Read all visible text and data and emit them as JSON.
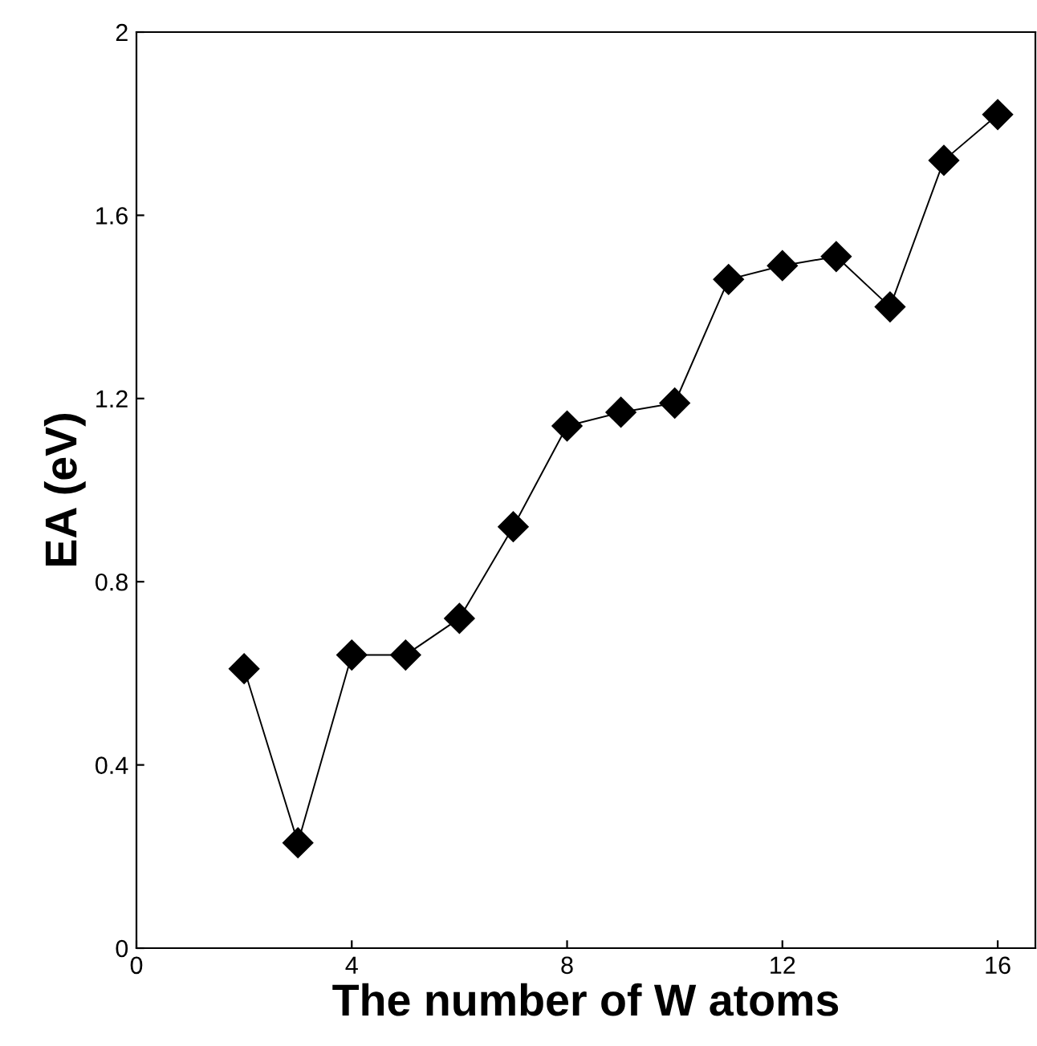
{
  "chart_data": {
    "type": "line",
    "xlabel": "The number of W atoms",
    "ylabel": "EA (eV)",
    "x": [
      2,
      3,
      4,
      5,
      6,
      7,
      8,
      9,
      10,
      11,
      12,
      13,
      14,
      15,
      16
    ],
    "series": [
      {
        "color": "#000000",
        "values": [
          0.61,
          0.23,
          0.64,
          0.64,
          0.72,
          0.92,
          1.14,
          1.17,
          1.19,
          1.46,
          1.49,
          1.51,
          1.4,
          1.72,
          1.82
        ]
      }
    ],
    "xlim": [
      0,
      16.7
    ],
    "ylim": [
      0,
      2
    ],
    "xticks": [
      0,
      4,
      8,
      12,
      16
    ],
    "yticks": [
      0,
      0.4,
      0.8,
      1.2,
      1.6,
      2
    ],
    "marker": "diamond",
    "line_style": "solid",
    "grid": false,
    "legend": false
  }
}
